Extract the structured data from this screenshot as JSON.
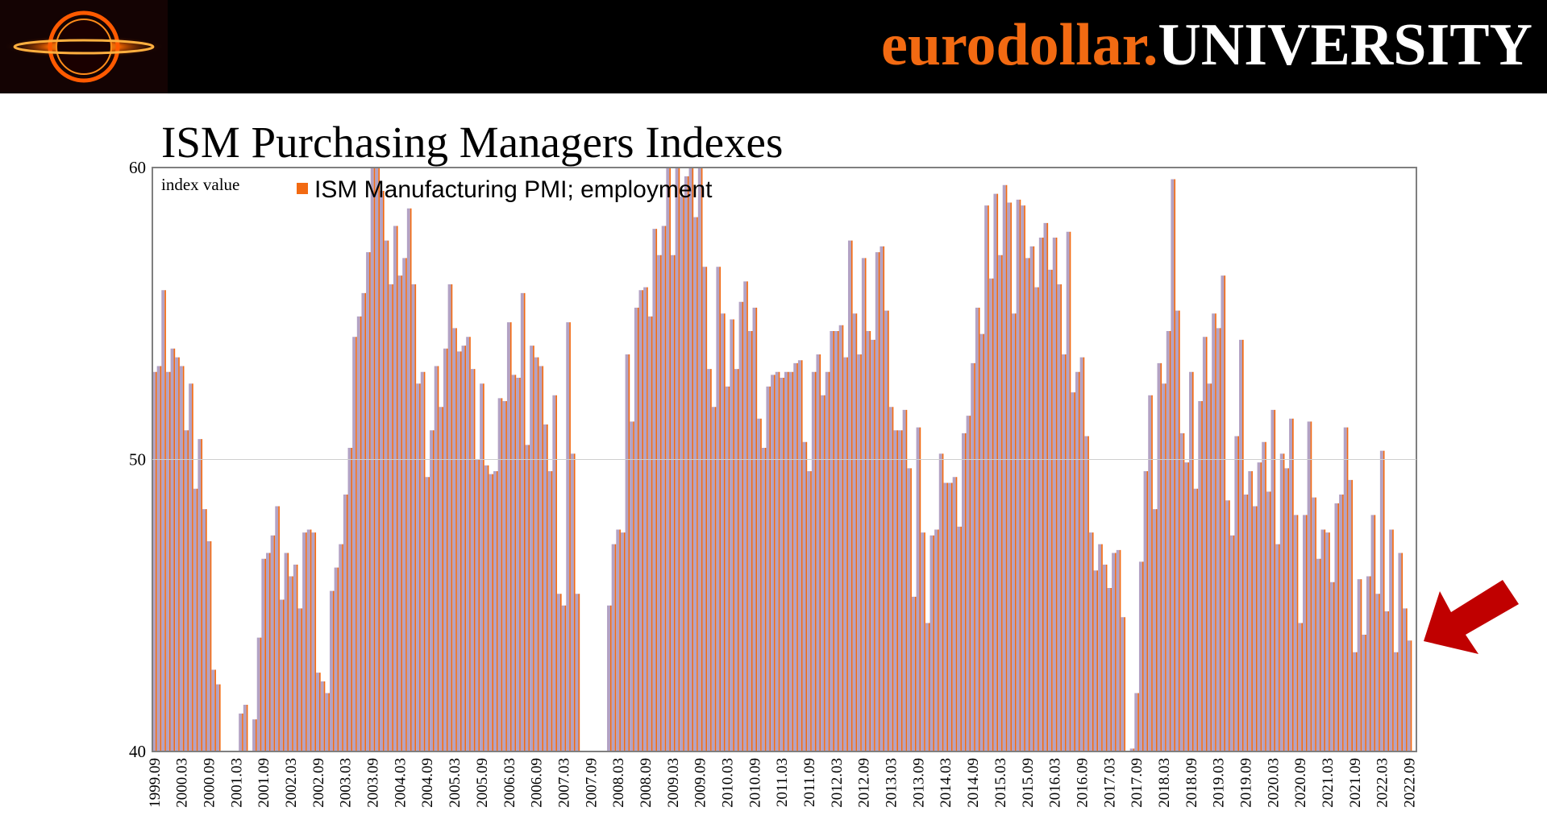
{
  "brand": {
    "part1": "eurodollar.",
    "part2": "UNIVERSITY"
  },
  "colors": {
    "bar": "#b3a2c4",
    "bar_edge": "#f26a12",
    "legend": "#f26a12",
    "arrow": "#c00000",
    "header_bg": "#000000",
    "brand_orange": "#f26a12"
  },
  "icons": {
    "logo": "eurodollar-logo-icon",
    "arrow": "red-arrow-icon"
  },
  "chart_data": {
    "type": "bar",
    "title": "ISM Purchasing Managers Indexes",
    "ylabel": "index value",
    "ylim": [
      40,
      60
    ],
    "yticks": [
      40,
      50,
      60
    ],
    "gridlines": [
      50
    ],
    "legend_position": "top-left",
    "series": [
      {
        "name": "ISM Manufacturing PMI; employment",
        "start": "1999.09",
        "frequency": "monthly",
        "values": [
          53.0,
          53.2,
          55.8,
          53.0,
          53.8,
          53.5,
          53.2,
          51.0,
          52.6,
          49.0,
          50.7,
          48.3,
          47.2,
          42.8,
          42.3,
          40,
          40,
          40,
          40,
          41.3,
          41.6,
          40,
          41.1,
          43.9,
          46.6,
          46.8,
          47.4,
          48.4,
          45.2,
          46.8,
          46.0,
          46.4,
          44.9,
          47.5,
          47.6,
          47.5,
          42.7,
          42.4,
          42.0,
          45.5,
          46.3,
          47.1,
          48.8,
          50.4,
          54.2,
          54.9,
          55.7,
          57.1,
          60.0,
          62.0,
          59.2,
          57.5,
          56.0,
          58.0,
          56.3,
          56.9,
          58.6,
          56.0,
          52.6,
          53.0,
          49.4,
          51.0,
          53.2,
          51.8,
          53.8,
          56.0,
          54.5,
          53.7,
          53.9,
          54.2,
          53.1,
          50.0,
          52.6,
          49.8,
          49.5,
          49.6,
          52.1,
          52.0,
          54.7,
          52.9,
          52.8,
          55.7,
          50.5,
          53.9,
          53.5,
          53.2,
          51.2,
          49.6,
          52.2,
          45.4,
          45.0,
          54.7,
          50.2,
          45.4,
          40.0,
          40.0,
          40,
          40,
          40,
          40,
          45.0,
          47.1,
          47.6,
          47.5,
          53.6,
          51.3,
          55.2,
          55.8,
          55.9,
          54.9,
          57.9,
          57.0,
          58.0,
          60.0,
          57.0,
          61.5,
          59.0,
          59.7,
          61.0,
          58.3,
          60.5,
          56.6,
          53.1,
          51.8,
          56.6,
          55.0,
          52.5,
          54.8,
          53.1,
          55.4,
          56.1,
          54.4,
          55.2,
          51.4,
          50.4,
          52.5,
          52.9,
          53.0,
          52.8,
          53.0,
          53.0,
          53.3,
          53.4,
          50.6,
          49.6,
          53.0,
          53.6,
          52.2,
          53.0,
          54.4,
          54.4,
          54.6,
          53.5,
          57.5,
          55.0,
          53.6,
          56.9,
          54.4,
          54.1,
          57.1,
          57.3,
          55.1,
          51.8,
          51.0,
          51.0,
          51.7,
          49.7,
          45.3,
          51.1,
          47.5,
          44.4,
          47.4,
          47.6,
          50.2,
          49.2,
          49.2,
          49.4,
          47.7,
          50.9,
          51.5,
          53.3,
          55.2,
          54.3,
          58.7,
          56.2,
          59.1,
          57.0,
          59.4,
          58.8,
          55.0,
          58.9,
          58.7,
          56.9,
          57.3,
          55.9,
          57.6,
          58.1,
          56.5,
          57.6,
          56.0,
          53.6,
          57.8,
          52.3,
          53.0,
          53.5,
          50.8,
          47.5,
          46.2,
          47.1,
          46.4,
          45.6,
          46.8,
          46.9,
          44.6,
          40.0,
          40.1,
          42.0,
          46.5,
          49.6,
          52.2,
          48.3,
          53.3,
          52.6,
          54.4,
          59.6,
          55.1,
          50.9,
          49.9,
          53.0,
          49.0,
          52.0,
          54.2,
          52.6,
          55.0,
          54.5,
          56.3,
          48.6,
          47.4,
          50.8,
          54.1,
          48.8,
          49.6,
          48.4,
          49.9,
          50.6,
          48.9,
          51.7,
          47.1,
          50.2,
          49.7,
          51.4,
          48.1,
          44.4,
          48.1,
          51.3,
          48.7,
          46.6,
          47.6,
          47.5,
          45.8,
          48.5,
          48.8,
          51.1,
          49.3,
          43.4,
          45.9,
          44.0,
          46.0,
          48.1,
          45.4,
          50.3,
          44.8,
          47.6,
          43.4,
          46.8,
          44.9,
          43.8,
          40.0
        ]
      }
    ]
  }
}
